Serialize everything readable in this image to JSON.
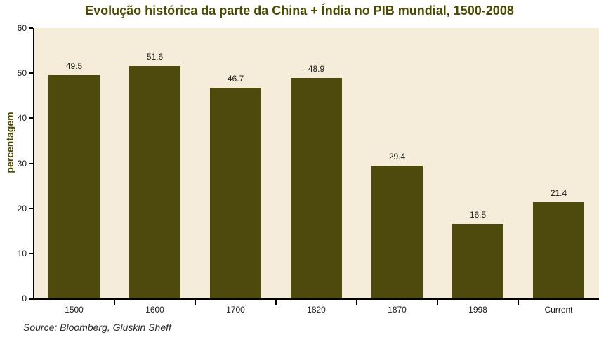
{
  "chart_data": {
    "type": "bar",
    "title": "Evolução histórica da parte da China + Índia no PIB mundial, 1500-2008",
    "categories": [
      "1500",
      "1600",
      "1700",
      "1820",
      "1870",
      "1998",
      "Current"
    ],
    "values": [
      49.5,
      51.6,
      46.7,
      48.9,
      29.4,
      16.5,
      21.4
    ],
    "xlabel": "",
    "ylabel": "percentagem",
    "ylim": [
      0,
      60
    ],
    "yticks": [
      0,
      10,
      20,
      30,
      40,
      50,
      60
    ],
    "grid": false,
    "legend": "none",
    "colors": {
      "bar": "#4E4A0B",
      "plot_background": "#F5EDD9",
      "title_text": "#4B4A00",
      "ylabel_text": "#4B4A00",
      "axis": "#000000",
      "tick_text": "#1a1a1a",
      "value_label_text": "#1a1a1a"
    }
  },
  "source": {
    "label": "Source: Bloomberg, Gluskin Sheff"
  }
}
